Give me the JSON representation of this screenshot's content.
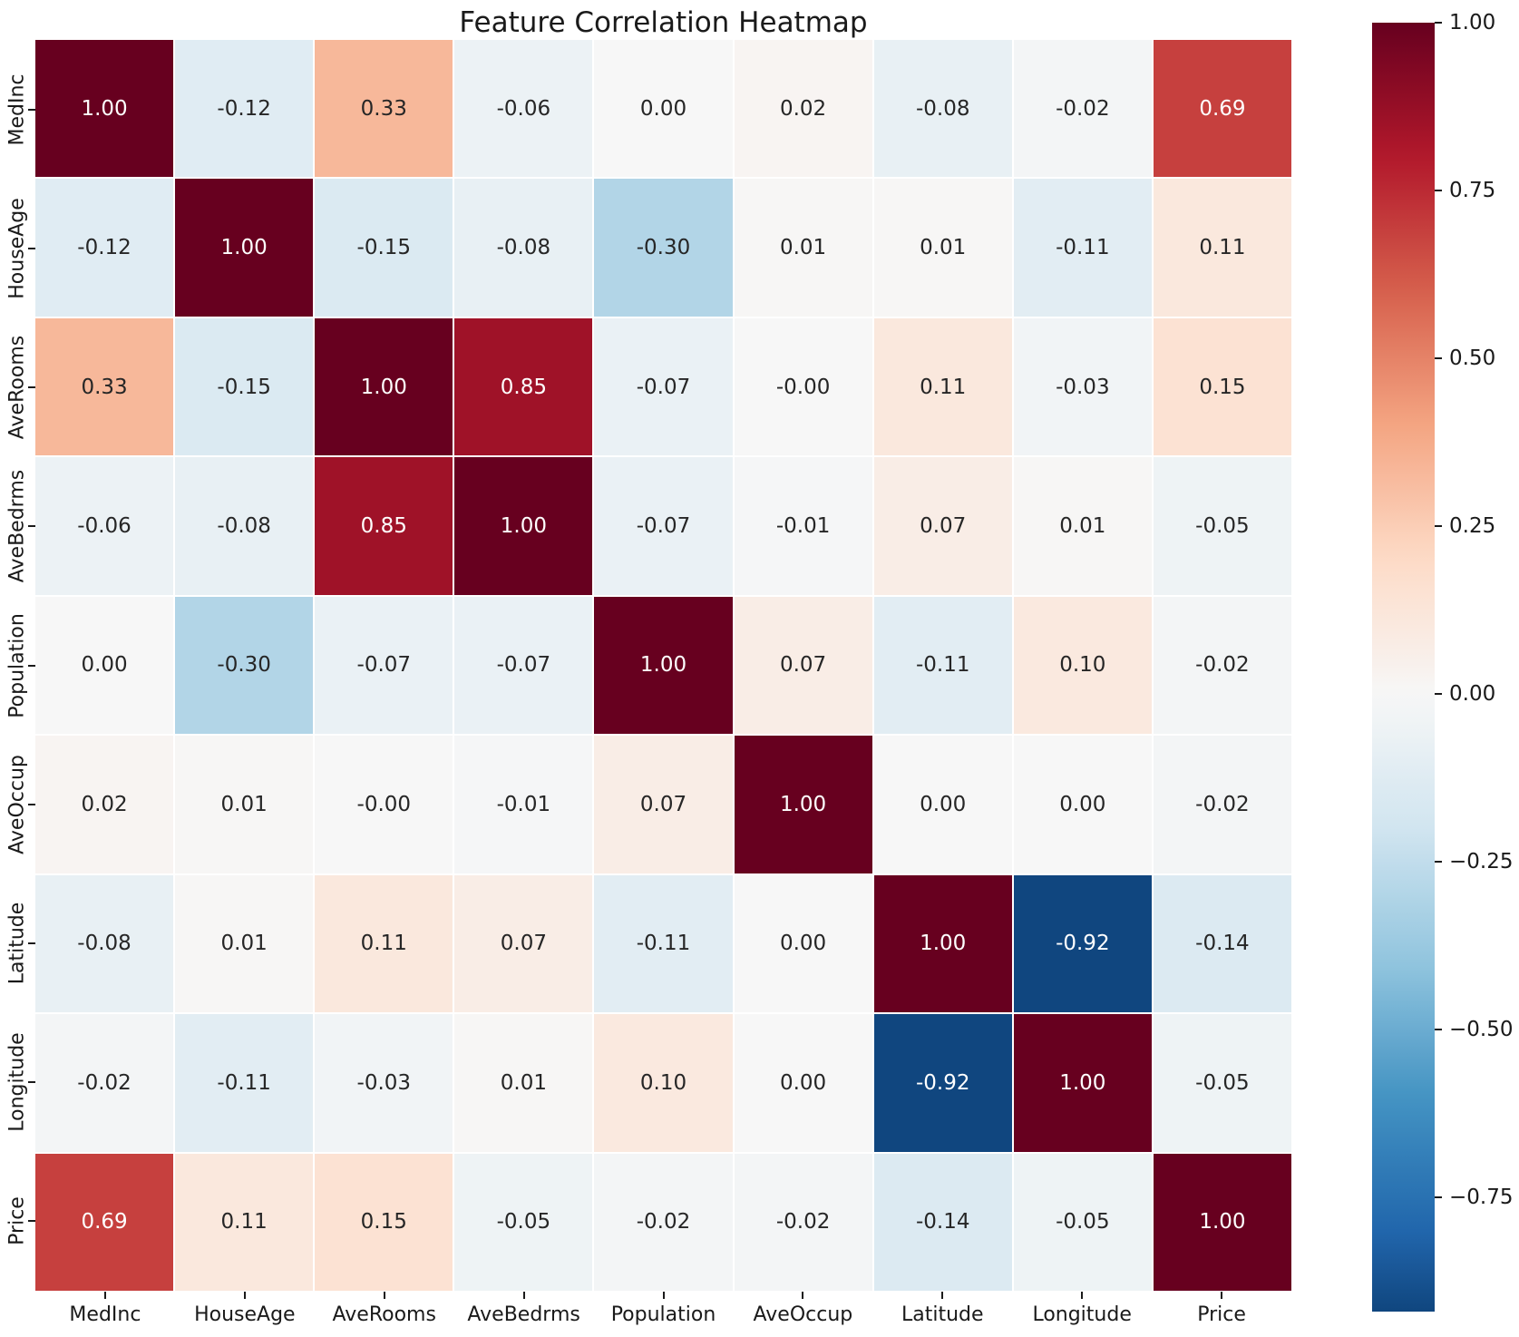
{
  "chart_data": {
    "type": "heatmap",
    "title": "Feature Correlation Heatmap",
    "labels": [
      "MedInc",
      "HouseAge",
      "AveRooms",
      "AveBedrms",
      "Population",
      "AveOccup",
      "Latitude",
      "Longitude",
      "Price"
    ],
    "matrix": [
      [
        "1.00",
        "-0.12",
        "0.33",
        "-0.06",
        "0.00",
        "0.02",
        "-0.08",
        "-0.02",
        "0.69"
      ],
      [
        "-0.12",
        "1.00",
        "-0.15",
        "-0.08",
        "-0.30",
        "0.01",
        "0.01",
        "-0.11",
        "0.11"
      ],
      [
        "0.33",
        "-0.15",
        "1.00",
        "0.85",
        "-0.07",
        "-0.00",
        "0.11",
        "-0.03",
        "0.15"
      ],
      [
        "-0.06",
        "-0.08",
        "0.85",
        "1.00",
        "-0.07",
        "-0.01",
        "0.07",
        "0.01",
        "-0.05"
      ],
      [
        "0.00",
        "-0.30",
        "-0.07",
        "-0.07",
        "1.00",
        "0.07",
        "-0.11",
        "0.10",
        "-0.02"
      ],
      [
        "0.02",
        "0.01",
        "-0.00",
        "-0.01",
        "0.07",
        "1.00",
        "0.00",
        "0.00",
        "-0.02"
      ],
      [
        "-0.08",
        "0.01",
        "0.11",
        "0.07",
        "-0.11",
        "0.00",
        "1.00",
        "-0.92",
        "-0.14"
      ],
      [
        "-0.02",
        "-0.11",
        "-0.03",
        "0.01",
        "0.10",
        "0.00",
        "-0.92",
        "1.00",
        "-0.05"
      ],
      [
        "0.69",
        "0.11",
        "0.15",
        "-0.05",
        "-0.02",
        "-0.02",
        "-0.14",
        "-0.05",
        "1.00"
      ]
    ],
    "colormap": {
      "name": "RdBu_r",
      "anchors": [
        "#053061",
        "#2166ac",
        "#4393c3",
        "#92c5de",
        "#d1e5f0",
        "#f7f7f7",
        "#fddbc7",
        "#f4a582",
        "#d6604d",
        "#b2182b",
        "#67001f"
      ]
    },
    "norm": {
      "center": 0,
      "halfrange": 1.0
    },
    "colorbar": {
      "vmax": 1.0,
      "vmin": -0.92,
      "ticks": [
        {
          "label": "1.00",
          "value": 1.0
        },
        {
          "label": "0.75",
          "value": 0.75
        },
        {
          "label": "0.50",
          "value": 0.5
        },
        {
          "label": "0.25",
          "value": 0.25
        },
        {
          "label": "0.00",
          "value": 0.0
        },
        {
          "label": "−0.25",
          "value": -0.25
        },
        {
          "label": "−0.50",
          "value": -0.5
        },
        {
          "label": "−0.75",
          "value": -0.75
        }
      ]
    },
    "annotation_colors": {
      "dark": "#262626",
      "light": "#ffffff"
    },
    "background": "#ffffff",
    "grid_line_color": "#ffffff",
    "legend_position": "right"
  }
}
